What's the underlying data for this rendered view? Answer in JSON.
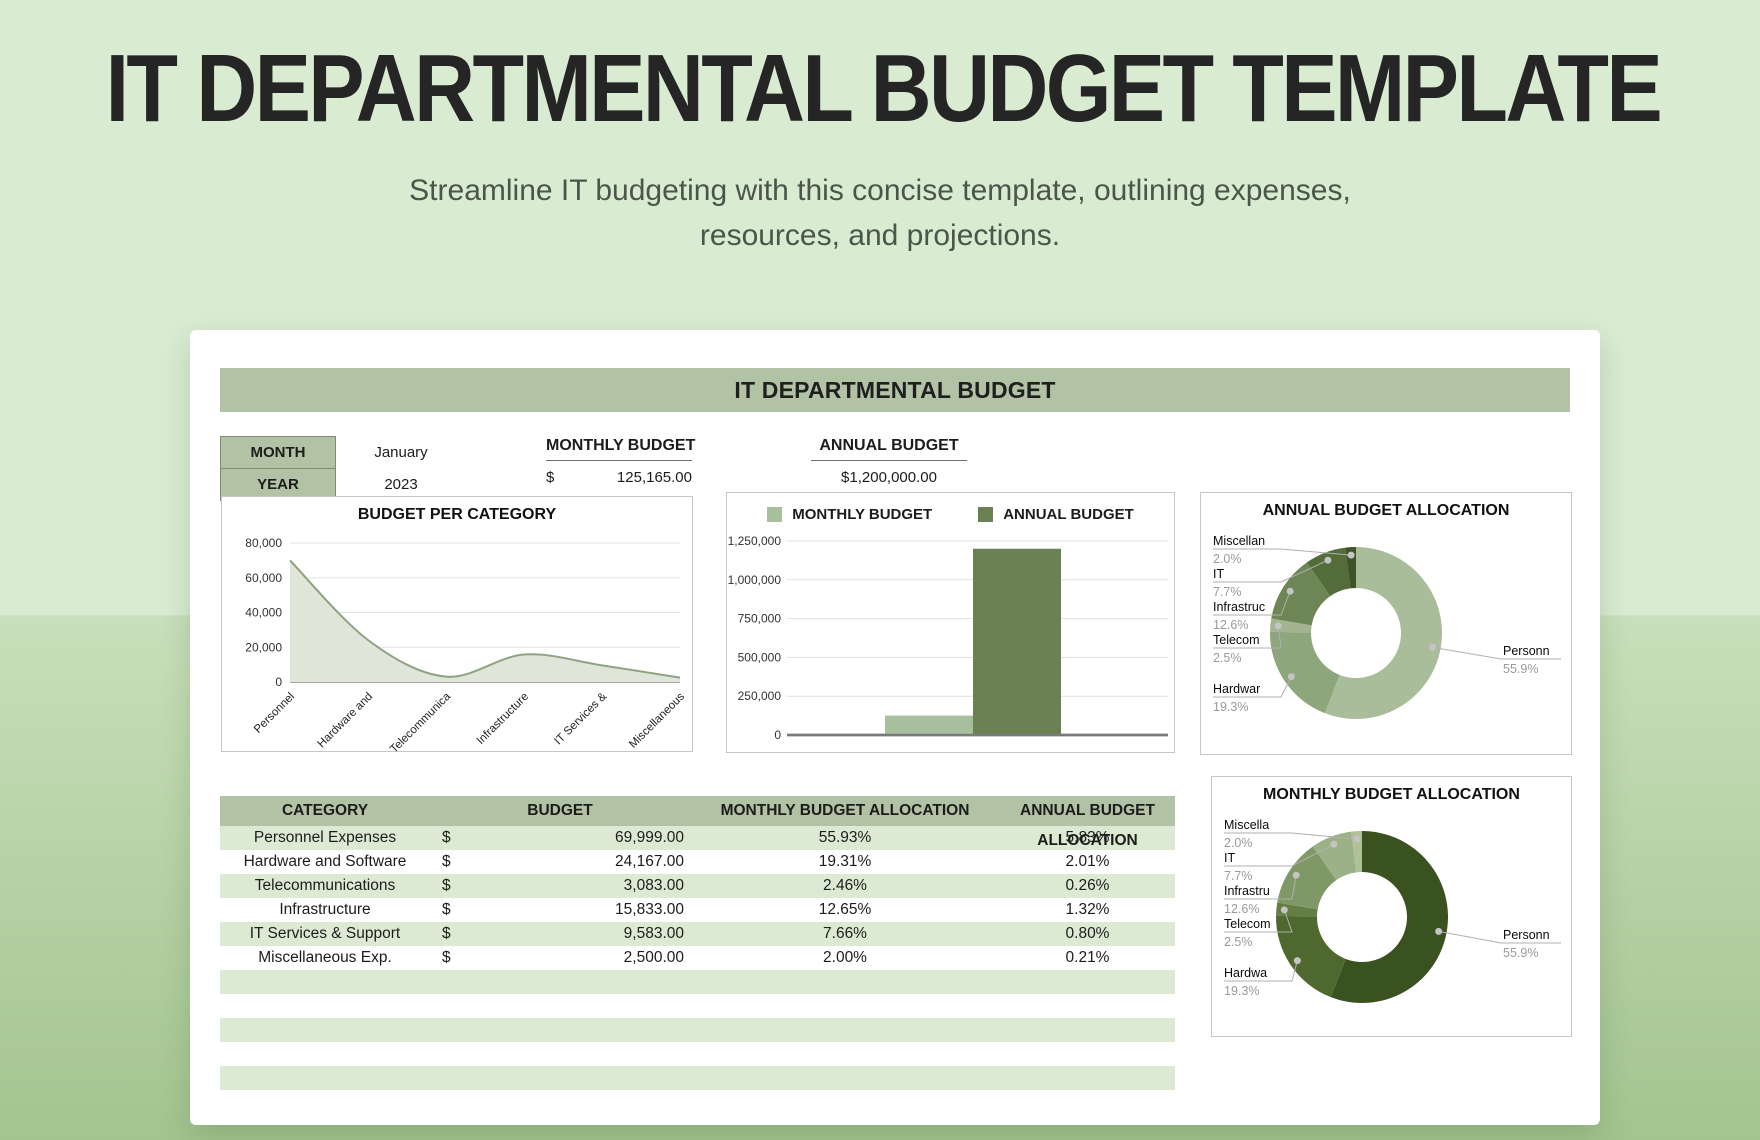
{
  "page": {
    "title": "IT DEPARTMENTAL BUDGET TEMPLATE",
    "subtitle_line1": "Streamline IT budgeting with this concise template, outlining expenses,",
    "subtitle_line2": "resources, and projections."
  },
  "sheet": {
    "header": "IT DEPARTMENTAL BUDGET",
    "month_label": "MONTH",
    "month_value": "January",
    "year_label": "YEAR",
    "year_value": "2023",
    "monthly_budget_label": "MONTHLY BUDGET",
    "monthly_budget_currency": "$",
    "monthly_budget_value": "125,165.00",
    "annual_budget_label": "ANNUAL BUDGET",
    "annual_budget_value": "$1,200,000.00"
  },
  "table": {
    "headers": [
      "CATEGORY",
      "BUDGET",
      "MONTHLY BUDGET ALLOCATION",
      "ANNUAL BUDGET ALLOCATION"
    ],
    "rows": [
      {
        "category": "Personnel Expenses",
        "currency": "$",
        "budget": "69,999.00",
        "monthly_allocation": "55.93%",
        "annual_allocation": "5.83%"
      },
      {
        "category": "Hardware and Software",
        "currency": "$",
        "budget": "24,167.00",
        "monthly_allocation": "19.31%",
        "annual_allocation": "2.01%"
      },
      {
        "category": "Telecommunications",
        "currency": "$",
        "budget": "3,083.00",
        "monthly_allocation": "2.46%",
        "annual_allocation": "0.26%"
      },
      {
        "category": "Infrastructure",
        "currency": "$",
        "budget": "15,833.00",
        "monthly_allocation": "12.65%",
        "annual_allocation": "1.32%"
      },
      {
        "category": "IT Services & Support",
        "currency": "$",
        "budget": "9,583.00",
        "monthly_allocation": "7.66%",
        "annual_allocation": "0.80%"
      },
      {
        "category": "Miscellaneous Exp.",
        "currency": "$",
        "budget": "2,500.00",
        "monthly_allocation": "2.00%",
        "annual_allocation": "0.21%"
      }
    ],
    "empty_row_count": 5
  },
  "colors": {
    "sage_header": "#b1c2a5",
    "sage_border": "#7e8d72",
    "table_stripe": "#dcead4",
    "area_fill": "#dfe5d8",
    "area_stroke": "#8fa381",
    "bar_monthly": "#a8bf9e",
    "bar_annual": "#6b8154",
    "bg_top": "#d9ebd1",
    "bg_bottom": "#a3c48f"
  },
  "chart_data": [
    {
      "type": "area",
      "title": "BUDGET PER CATEGORY",
      "categories": [
        "Personnel",
        "Hardware and",
        "Telecommunica",
        "Infrastructure",
        "IT Services &",
        "Miscellaneous"
      ],
      "values": [
        69999,
        24167,
        3083,
        15833,
        9583,
        2500
      ],
      "ylim": [
        0,
        80000
      ],
      "yticks": [
        "0",
        "20,000",
        "40,000",
        "60,000",
        "80,000"
      ],
      "grid": true,
      "legend_position": "none"
    },
    {
      "type": "bar",
      "title": "",
      "legend": [
        "MONTHLY BUDGET",
        "ANNUAL BUDGET"
      ],
      "categories": [
        "MONTHLY BUDGET",
        "ANNUAL BUDGET"
      ],
      "values": [
        125165,
        1200000
      ],
      "colors": [
        "#a8bf9e",
        "#6b8154"
      ],
      "ylim": [
        0,
        1250000
      ],
      "yticks": [
        "0",
        "250,000",
        "500,000",
        "750,000",
        "1,000,000",
        "1,250,000"
      ],
      "grid": true,
      "legend_position": "top"
    },
    {
      "type": "donut",
      "title": "ANNUAL BUDGET ALLOCATION",
      "slices": [
        {
          "label": "Personn",
          "pct_label": "55.9%",
          "value": 55.9,
          "color": "#a9bd9b"
        },
        {
          "label": "Hardwar",
          "pct_label": "19.3%",
          "value": 19.3,
          "color": "#8ea67c"
        },
        {
          "label": "Telecom",
          "pct_label": "2.5%",
          "value": 2.5,
          "color": "#a2b491"
        },
        {
          "label": "Infrastruc",
          "pct_label": "12.6%",
          "value": 12.6,
          "color": "#6e8656"
        },
        {
          "label": "IT",
          "pct_label": "7.7%",
          "value": 7.7,
          "color": "#536c39"
        },
        {
          "label": "Miscellan",
          "pct_label": "2.0%",
          "value": 2.0,
          "color": "#3e5426"
        }
      ]
    },
    {
      "type": "donut",
      "title": "MONTHLY BUDGET ALLOCATION",
      "slices": [
        {
          "label": "Personn",
          "pct_label": "55.9%",
          "value": 55.9,
          "color": "#3a5120"
        },
        {
          "label": "Hardwa",
          "pct_label": "19.3%",
          "value": 19.3,
          "color": "#4f6830"
        },
        {
          "label": "Telecom",
          "pct_label": "2.5%",
          "value": 2.5,
          "color": "#647d42"
        },
        {
          "label": "Infrastru",
          "pct_label": "12.6%",
          "value": 12.6,
          "color": "#7f9865"
        },
        {
          "label": "IT",
          "pct_label": "7.7%",
          "value": 7.7,
          "color": "#9cb185"
        },
        {
          "label": "Miscella",
          "pct_label": "2.0%",
          "value": 2.0,
          "color": "#b0c099"
        }
      ]
    }
  ]
}
